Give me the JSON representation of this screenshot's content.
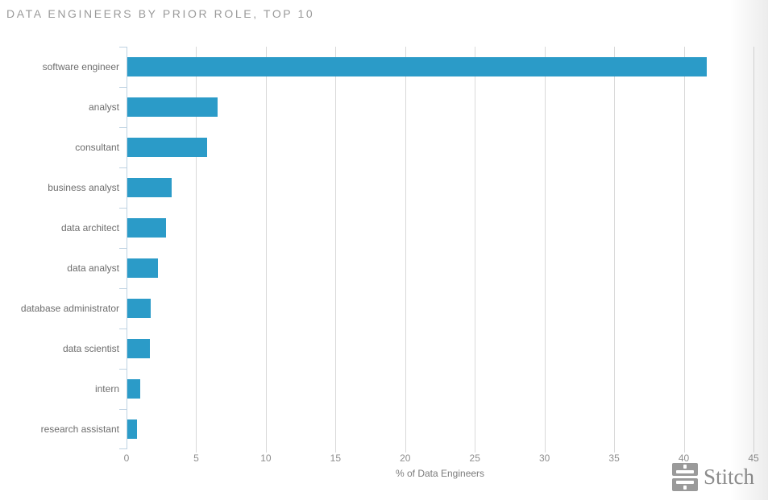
{
  "page": {
    "title": "DATA ENGINEERS BY PRIOR ROLE, TOP 10"
  },
  "chart_data": {
    "type": "bar",
    "orientation": "horizontal",
    "title": "DATA ENGINEERS BY PRIOR ROLE, TOP 10",
    "categories": [
      "software engineer",
      "analyst",
      "consultant",
      "business analyst",
      "data architect",
      "data analyst",
      "database administrator",
      "data scientist",
      "intern",
      "research assistant"
    ],
    "values": [
      41.6,
      6.5,
      5.7,
      3.2,
      2.8,
      2.2,
      1.7,
      1.6,
      0.9,
      0.7
    ],
    "xlabel": "% of Data Engineers",
    "ylabel": "",
    "xlim": [
      0,
      45
    ],
    "xticks": [
      0,
      5,
      10,
      15,
      20,
      25,
      30,
      35,
      40,
      45
    ],
    "grid": true,
    "legend": "none",
    "bar_color": "#2b9bc8"
  },
  "branding": {
    "logo_text": "Stitch"
  },
  "colors": {
    "bar": "#2b9bc8",
    "gridline": "#d9d9d9",
    "y_axis": "#bed2e2",
    "title_text": "#9a9a9a",
    "category_text": "#6d6d6d",
    "tick_text": "#8d8d8d",
    "logo": "#9a9a9a"
  }
}
